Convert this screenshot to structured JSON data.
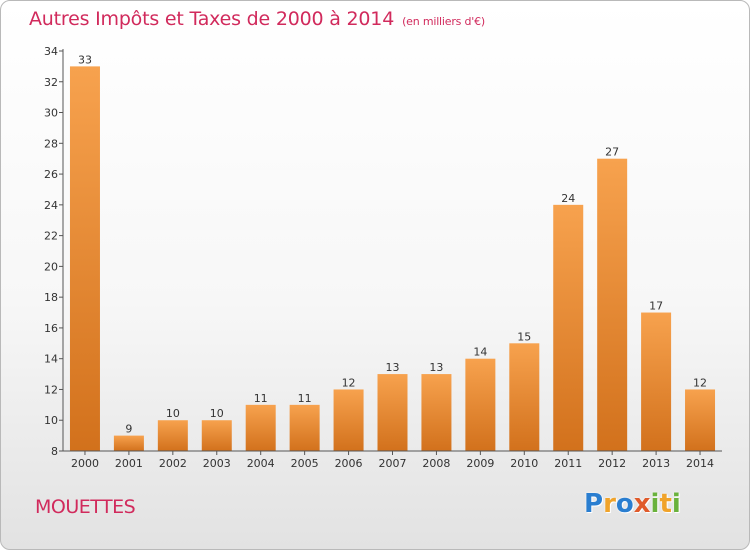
{
  "header": {
    "title": "Autres Impôts et Taxes de 2000 à 2014",
    "unit": "(en milliers d'€)"
  },
  "footer": {
    "commune": "MOUETTES",
    "logo": "Proxiti"
  },
  "colors": {
    "title": "#d12a5c",
    "bar_light": "#f7a24e",
    "bar_dark": "#d2711c",
    "axis": "#555555"
  },
  "chart_data": {
    "type": "bar",
    "categories": [
      "2000",
      "2001",
      "2002",
      "2003",
      "2004",
      "2005",
      "2006",
      "2007",
      "2008",
      "2009",
      "2010",
      "2011",
      "2012",
      "2013",
      "2014"
    ],
    "values": [
      33,
      9,
      10,
      10,
      11,
      11,
      12,
      13,
      13,
      14,
      15,
      24,
      27,
      17,
      12
    ],
    "ylim": [
      8,
      34
    ],
    "yticks": [
      8,
      10,
      12,
      14,
      16,
      18,
      20,
      22,
      24,
      26,
      28,
      30,
      32,
      34
    ],
    "grid": false,
    "data_labels": true
  }
}
